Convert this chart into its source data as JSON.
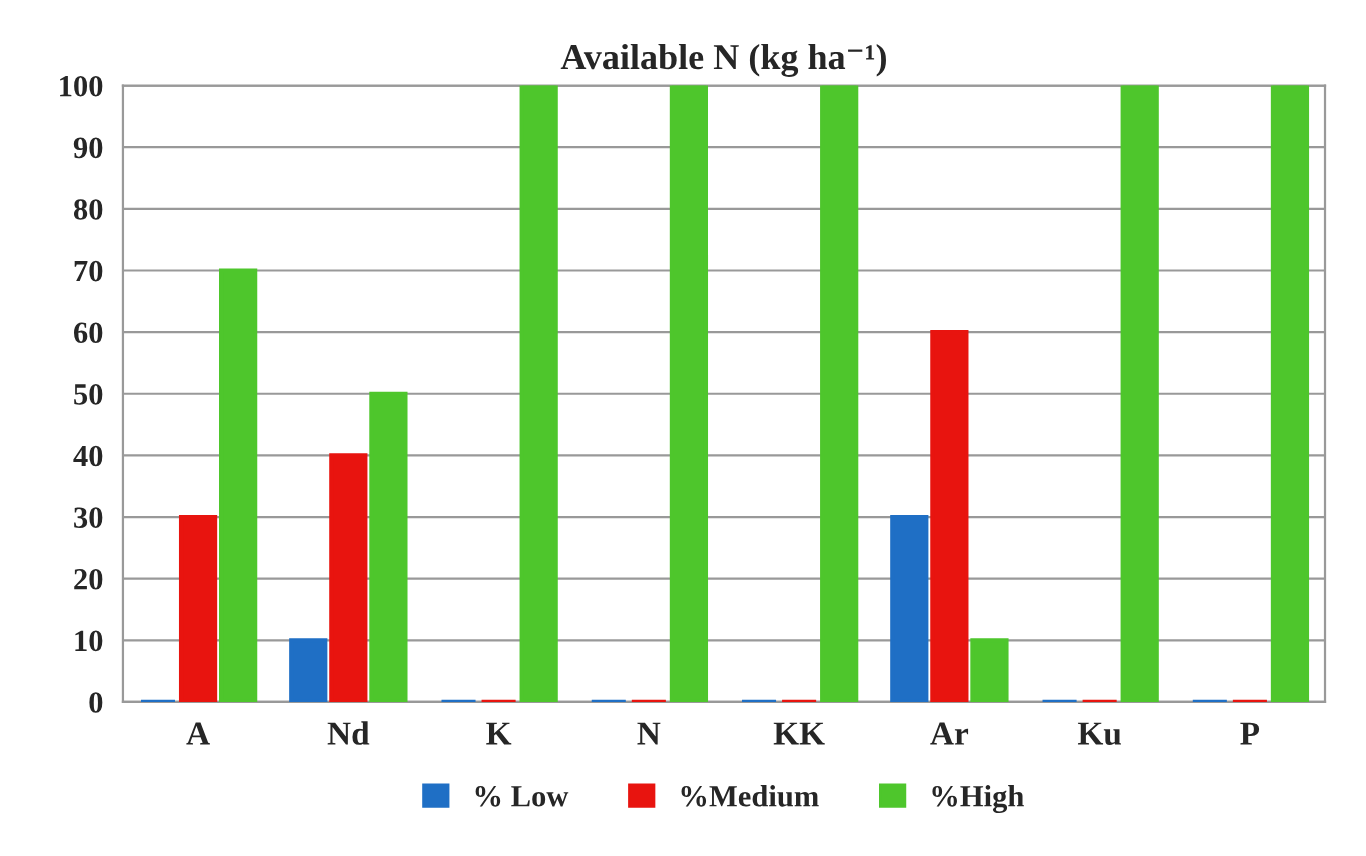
{
  "chart_data": {
    "type": "bar",
    "title": "Available N (kg ha⁻¹)",
    "categories": [
      "A",
      "Nd",
      "K",
      "N",
      "KK",
      "Ar",
      "Ku",
      "P"
    ],
    "series": [
      {
        "name": "% Low",
        "color": "#1f6fc5",
        "values": [
          0,
          10,
          0,
          0,
          0,
          30,
          0,
          0
        ]
      },
      {
        "name": "%Medium",
        "color": "#e8140f",
        "values": [
          30,
          40,
          0,
          0,
          0,
          60,
          0,
          0
        ]
      },
      {
        "name": "%High",
        "color": "#4ec62c",
        "values": [
          70,
          50,
          100,
          100,
          100,
          10,
          100,
          100
        ]
      }
    ],
    "ylim": [
      0,
      100
    ],
    "yticks": [
      0,
      10,
      20,
      30,
      40,
      50,
      60,
      70,
      80,
      90,
      100
    ],
    "grid": "y",
    "legend": "bottom"
  }
}
